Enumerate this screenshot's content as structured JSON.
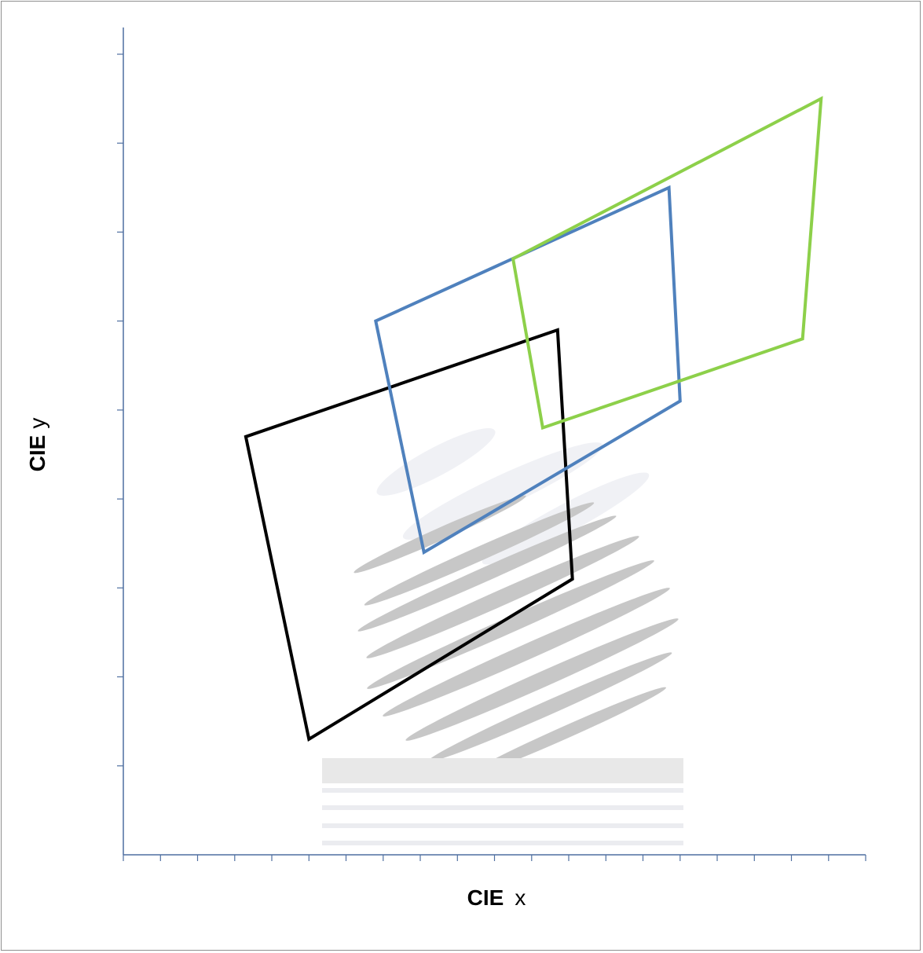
{
  "chart_data": {
    "type": "line",
    "xlabel_bold": "CIE",
    "xlabel_rest": "x",
    "ylabel_bold": "CIE",
    "ylabel_rest": "y",
    "x_ticks": 20,
    "y_ticks": 9,
    "grid": false,
    "series": [
      {
        "color": "#000000",
        "closed": true,
        "points": [
          [
            3.3,
            4.7
          ],
          [
            11.7,
            5.9
          ],
          [
            12.1,
            3.1
          ],
          [
            5.0,
            1.3
          ]
        ]
      },
      {
        "color": "#4f81bd",
        "closed": true,
        "points": [
          [
            6.8,
            6.0
          ],
          [
            14.7,
            7.5
          ],
          [
            15.0,
            5.1
          ],
          [
            8.1,
            3.4
          ]
        ]
      },
      {
        "color": "#8dd04a",
        "closed": true,
        "points": [
          [
            10.5,
            6.7
          ],
          [
            18.8,
            8.5
          ],
          [
            18.3,
            5.8
          ],
          [
            11.3,
            4.8
          ]
        ]
      }
    ],
    "xlim": [
      0,
      20
    ],
    "ylim": [
      0,
      9.3
    ]
  },
  "colors": {
    "axis": "#4f6fa0",
    "ghost": "#bdbdbd"
  }
}
